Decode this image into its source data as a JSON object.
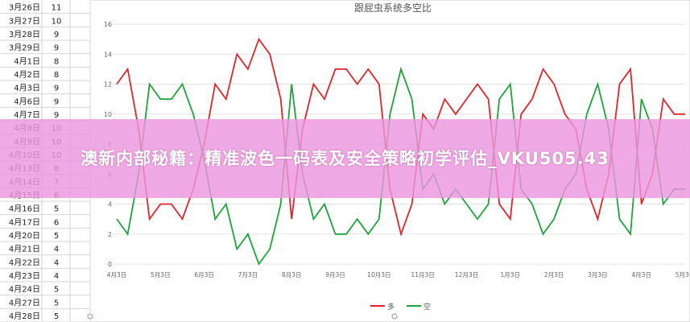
{
  "spreadsheet": {
    "rows": [
      [
        "3月26日",
        11
      ],
      [
        "3月27日",
        10
      ],
      [
        "3月28日",
        9
      ],
      [
        "3月29日",
        9
      ],
      [
        "4月1日",
        8
      ],
      [
        "4月2日",
        8
      ],
      [
        "4月3日",
        9
      ],
      [
        "4月6日",
        9
      ],
      [
        "4月7日",
        9
      ],
      [
        "4月8日",
        10
      ],
      [
        "4月9日",
        10
      ],
      [
        "4月10日",
        10
      ],
      [
        "4月13日",
        8
      ],
      [
        "4月14日",
        7
      ],
      [
        "4月15日",
        6
      ],
      [
        "4月16日",
        5
      ],
      [
        "4月17日",
        6
      ],
      [
        "4月20日",
        5
      ],
      [
        "4月21日",
        4
      ],
      [
        "4月22日",
        4
      ],
      [
        "4月23日",
        4
      ],
      [
        "4月24日",
        5
      ],
      [
        "4月27日",
        5
      ],
      [
        "4月28日",
        5
      ]
    ]
  },
  "chart_data": {
    "type": "line",
    "title": "跟屁虫系统多空比",
    "categories": [
      "4月3日",
      null,
      null,
      null,
      "5月3日",
      null,
      null,
      null,
      "6月3日",
      null,
      null,
      null,
      "7月3日",
      null,
      null,
      null,
      "8月3日",
      null,
      null,
      null,
      "9月3日",
      null,
      null,
      null,
      "10月3日",
      null,
      null,
      null,
      "11月3日",
      null,
      null,
      null,
      "12月3日",
      null,
      null,
      null,
      "1月3日",
      null,
      null,
      null,
      "2月3日",
      null,
      null,
      null,
      "3月3日",
      null,
      null,
      null,
      "4月3日",
      null,
      null,
      null,
      "5月3日"
    ],
    "series": [
      {
        "name": "多",
        "color": "#e0252a",
        "values": [
          12,
          13,
          9,
          3,
          4,
          4,
          3,
          5,
          8,
          12,
          11,
          14,
          13,
          15,
          14,
          11,
          3,
          9,
          12,
          11,
          13,
          13,
          12,
          13,
          12,
          5,
          2,
          4,
          10,
          9,
          11,
          10,
          11,
          12,
          11,
          4,
          3,
          10,
          11,
          13,
          12,
          10,
          9,
          5,
          3,
          6,
          12,
          13,
          4,
          6,
          11,
          10,
          10
        ]
      },
      {
        "name": "空",
        "color": "#1fa33a",
        "values": [
          3,
          2,
          6,
          12,
          11,
          11,
          12,
          10,
          7,
          3,
          4,
          1,
          2,
          0,
          1,
          4,
          12,
          6,
          3,
          4,
          2,
          2,
          3,
          2,
          3,
          10,
          13,
          11,
          5,
          6,
          4,
          5,
          4,
          3,
          4,
          11,
          12,
          5,
          4,
          2,
          3,
          5,
          6,
          10,
          12,
          9,
          3,
          2,
          11,
          9,
          4,
          5,
          5
        ]
      }
    ],
    "ylim": [
      0,
      16
    ],
    "yticks": [
      0,
      2,
      4,
      6,
      8,
      10,
      12,
      14,
      16
    ],
    "grid": true
  },
  "banner": {
    "text": "澳新内部秘籍：精准波色一码表及安全策略初学评估_VKU505.43"
  }
}
